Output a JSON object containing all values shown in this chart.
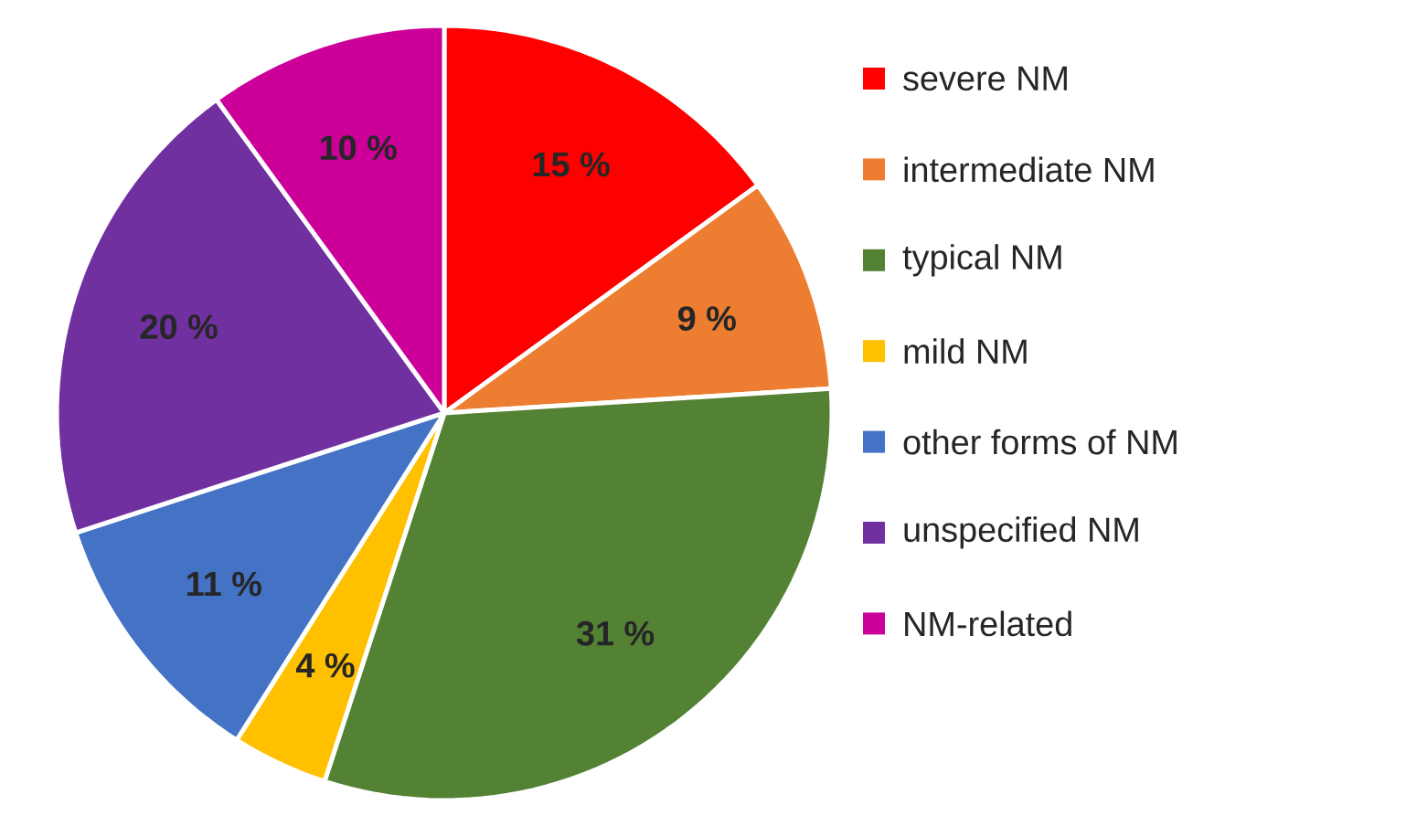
{
  "chart_data": {
    "type": "pie",
    "categories": [
      "severe NM",
      "intermediate NM",
      "typical NM",
      "mild NM",
      "other forms of NM",
      "unspecified NM",
      "NM-related"
    ],
    "values": [
      15,
      9,
      31,
      4,
      11,
      20,
      10
    ],
    "value_labels": [
      "15 %",
      "9 %",
      "31 %",
      "4 %",
      "11 %",
      "20 %",
      "10 %"
    ],
    "colors": [
      "#ff0000",
      "#ed7d31",
      "#548235",
      "#ffc000",
      "#4472c4",
      "#7030a0",
      "#cc0099"
    ],
    "legend": "right"
  }
}
